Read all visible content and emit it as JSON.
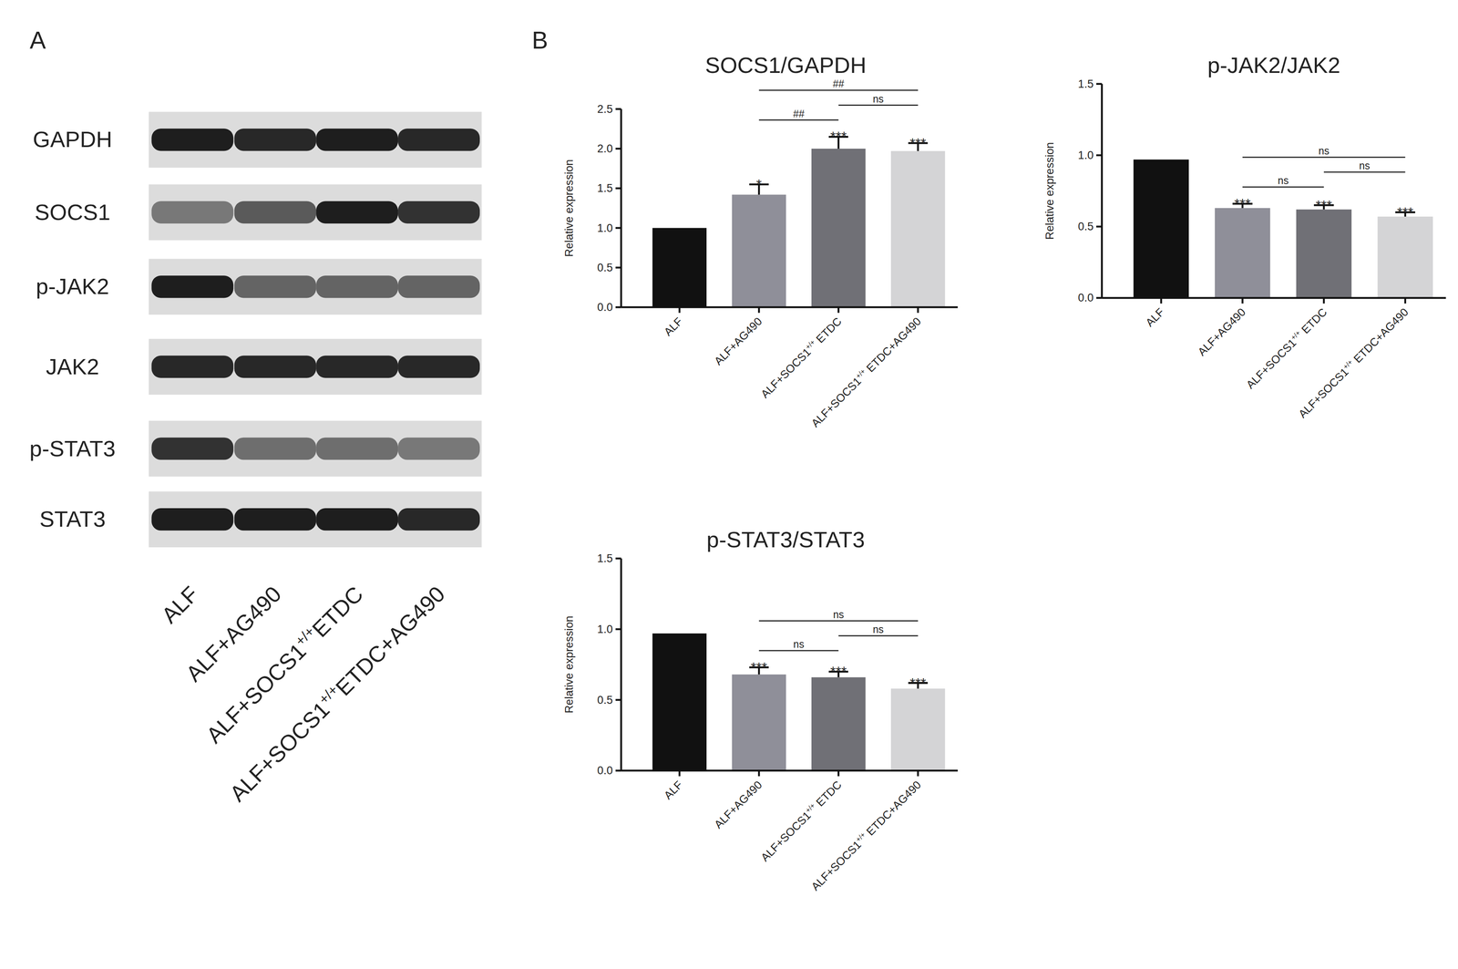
{
  "panels": [
    "A",
    "B"
  ],
  "blot": {
    "lanes": [
      "ALF",
      "ALF+AG490",
      "ALF+SOCS1+/+ETDC",
      "ALF+SOCS1+/+ETDC+AG490"
    ],
    "rows": [
      {
        "label": "GAPDH",
        "intensity": [
          0.95,
          0.9,
          0.95,
          0.9
        ]
      },
      {
        "label": "SOCS1",
        "intensity": [
          0.5,
          0.65,
          0.95,
          0.85
        ]
      },
      {
        "label": "p-JAK2",
        "intensity": [
          0.95,
          0.6,
          0.6,
          0.6
        ]
      },
      {
        "label": "JAK2",
        "intensity": [
          0.9,
          0.9,
          0.9,
          0.9
        ]
      },
      {
        "label": "p-STAT3",
        "intensity": [
          0.85,
          0.55,
          0.55,
          0.5
        ]
      },
      {
        "label": "STAT3",
        "intensity": [
          0.95,
          0.95,
          0.95,
          0.9
        ]
      }
    ]
  },
  "chart_data": [
    {
      "type": "bar",
      "title": "SOCS1/GAPDH",
      "y_label": "Relative expression",
      "categories": [
        "ALF",
        "ALF+AG490",
        "ALF+SOCS1+/+ ETDC",
        "ALF+SOCS1+/+ ETDC+AG490"
      ],
      "values": [
        1.0,
        1.42,
        2.0,
        1.97
      ],
      "errors": [
        null,
        0.13,
        0.15,
        0.1
      ],
      "colors": [
        "#111111",
        "#8f8f99",
        "#707076",
        "#d4d4d6"
      ],
      "significance": [
        null,
        "*",
        "***",
        "***"
      ],
      "comparisons": [
        {
          "from": 1,
          "to": 2,
          "label": "##"
        },
        {
          "from": 2,
          "to": 3,
          "label": "ns"
        },
        {
          "from": 1,
          "to": 3,
          "label": "##"
        }
      ],
      "ylim": [
        0,
        2.5
      ],
      "yticks": [
        {
          "value": 0,
          "label": "0.0"
        },
        0.5,
        {
          "value": 1,
          "label": "1.0"
        },
        1.5,
        {
          "value": 2,
          "label": "2.0"
        },
        2.5
      ]
    },
    {
      "type": "bar",
      "title": "p-JAK2/JAK2",
      "y_label": "Relative expression",
      "categories": [
        "ALF",
        "ALF+AG490",
        "ALF+SOCS1+/+ ETDC",
        "ALF+SOCS1+/+ ETDC+AG490"
      ],
      "values": [
        0.97,
        0.63,
        0.62,
        0.57
      ],
      "errors": [
        null,
        0.03,
        0.03,
        0.03
      ],
      "colors": [
        "#111111",
        "#8f8f99",
        "#707076",
        "#d4d4d6"
      ],
      "significance": [
        null,
        "***",
        "***",
        "***"
      ],
      "comparisons": [
        {
          "from": 1,
          "to": 2,
          "label": "ns"
        },
        {
          "from": 2,
          "to": 3,
          "label": "ns"
        },
        {
          "from": 1,
          "to": 3,
          "label": "ns"
        }
      ],
      "ylim": [
        0,
        1.5
      ],
      "yticks": [
        {
          "value": 0,
          "label": "0.0"
        },
        0.5,
        {
          "value": 1,
          "label": "1.0"
        },
        1.5
      ]
    },
    {
      "type": "bar",
      "title": "p-STAT3/STAT3",
      "y_label": "Relative expression",
      "categories": [
        "ALF",
        "ALF+AG490",
        "ALF+SOCS1+/+ ETDC",
        "ALF+SOCS1+/+ ETDC+AG490"
      ],
      "values": [
        0.97,
        0.68,
        0.66,
        0.58
      ],
      "errors": [
        null,
        0.05,
        0.04,
        0.04
      ],
      "colors": [
        "#111111",
        "#8f8f99",
        "#707076",
        "#d4d4d6"
      ],
      "significance": [
        null,
        "***",
        "***",
        "***"
      ],
      "comparisons": [
        {
          "from": 1,
          "to": 2,
          "label": "ns"
        },
        {
          "from": 2,
          "to": 3,
          "label": "ns"
        },
        {
          "from": 1,
          "to": 3,
          "label": "ns"
        }
      ],
      "ylim": [
        0,
        1.5
      ],
      "yticks": [
        {
          "value": 0,
          "label": "0.0"
        },
        0.5,
        {
          "value": 1,
          "label": "1.0"
        },
        1.5
      ]
    }
  ]
}
